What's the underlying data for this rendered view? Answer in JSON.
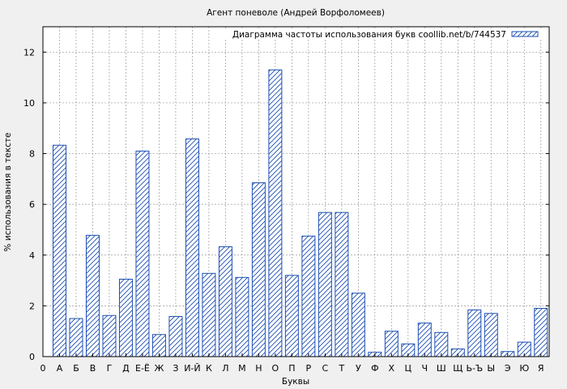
{
  "chart_data": {
    "type": "bar",
    "title": "Агент поневоле (Андрей Ворфоломеев)",
    "xlabel": "Буквы",
    "ylabel": "% использования в тексте",
    "legend_label": "Диаграмма частоты использования букв coollib.net/b/744537",
    "legend_position": "top-right",
    "grid": true,
    "ylim": [
      0,
      13
    ],
    "yticks": [
      0,
      2,
      4,
      6,
      8,
      10,
      12
    ],
    "x_zero_label": "0",
    "categories": [
      "А",
      "Б",
      "В",
      "Г",
      "Д",
      "Е-Ё",
      "Ж",
      "З",
      "И-Й",
      "К",
      "Л",
      "М",
      "Н",
      "О",
      "П",
      "Р",
      "С",
      "Т",
      "У",
      "Ф",
      "Х",
      "Ц",
      "Ч",
      "Ш",
      "Щ",
      "Ь-Ъ",
      "Ы",
      "Э",
      "Ю",
      "Я"
    ],
    "values": [
      8.33,
      1.5,
      4.78,
      1.62,
      3.05,
      8.1,
      0.87,
      1.58,
      8.58,
      3.28,
      4.33,
      3.12,
      6.85,
      11.3,
      3.2,
      4.75,
      5.68,
      5.68,
      2.5,
      0.17,
      1.0,
      0.5,
      1.32,
      0.95,
      0.3,
      1.84,
      1.7,
      0.2,
      0.57,
      1.9
    ],
    "colors": {
      "bar": "#1e4fb4",
      "grid": "#999999",
      "background": "#f0f0f0"
    }
  }
}
